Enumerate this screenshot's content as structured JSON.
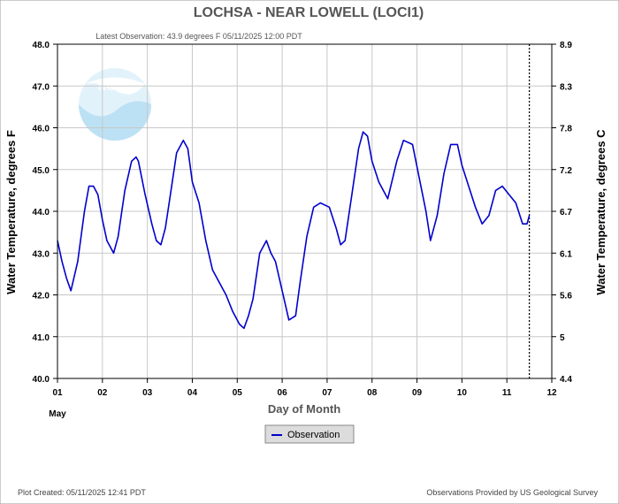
{
  "header": {
    "title": "LOCHSA - NEAR LOWELL  (LOCI1)",
    "latest_observation": "Latest Observation: 43.9 degrees F  05/11/2025 12:00 PDT"
  },
  "footer": {
    "plot_created": "Plot Created: 05/11/2025 12:41 PDT",
    "provided_by": "Observations Provided by US Geological Survey"
  },
  "logo": {
    "text": "NOAA",
    "icon": "noaa-logo-icon"
  },
  "colors": {
    "series": "#0000cc",
    "grid": "#c8c8c8",
    "border": "#000000",
    "logo": "#9fd0ee"
  },
  "chart_data": {
    "type": "line",
    "title": "LOCHSA - NEAR LOWELL  (LOCI1)",
    "xlabel": "Day of Month",
    "x_month_label": "May",
    "ylabel": "Water Temperature, degrees F",
    "y2label": "Water Temperature, degrees C",
    "xlim": [
      1,
      12
    ],
    "ylim": [
      40.0,
      48.0
    ],
    "x_ticks": [
      "01",
      "02",
      "03",
      "04",
      "05",
      "06",
      "07",
      "08",
      "09",
      "10",
      "11",
      "12"
    ],
    "y_ticks": [
      "40.0",
      "41.0",
      "42.0",
      "43.0",
      "44.0",
      "45.0",
      "46.0",
      "47.0",
      "48.0"
    ],
    "y2_ticks": [
      {
        "label": "4.4",
        "f": 40.0
      },
      {
        "label": "5",
        "f": 41.0
      },
      {
        "label": "5.6",
        "f": 42.0
      },
      {
        "label": "6.1",
        "f": 43.0
      },
      {
        "label": "6.7",
        "f": 44.0
      },
      {
        "label": "7.2",
        "f": 45.0
      },
      {
        "label": "7.8",
        "f": 46.0
      },
      {
        "label": "8.3",
        "f": 47.0
      },
      {
        "label": "8.9",
        "f": 48.0
      }
    ],
    "grid": true,
    "legend_position": "bottom-center",
    "latest_obs_x": 11.5,
    "series": [
      {
        "name": "Observation",
        "x": [
          1.0,
          1.1,
          1.2,
          1.3,
          1.45,
          1.6,
          1.7,
          1.8,
          1.9,
          2.0,
          2.1,
          2.25,
          2.35,
          2.5,
          2.65,
          2.75,
          2.8,
          2.95,
          3.1,
          3.2,
          3.3,
          3.4,
          3.5,
          3.65,
          3.8,
          3.9,
          4.0,
          4.15,
          4.3,
          4.45,
          4.6,
          4.75,
          4.9,
          5.05,
          5.15,
          5.25,
          5.35,
          5.5,
          5.65,
          5.75,
          5.85,
          6.0,
          6.15,
          6.3,
          6.4,
          6.55,
          6.7,
          6.85,
          7.05,
          7.2,
          7.3,
          7.4,
          7.55,
          7.7,
          7.8,
          7.9,
          8.0,
          8.15,
          8.35,
          8.55,
          8.7,
          8.9,
          9.05,
          9.2,
          9.3,
          9.45,
          9.6,
          9.75,
          9.9,
          10.0,
          10.15,
          10.3,
          10.45,
          10.6,
          10.75,
          10.9,
          11.05,
          11.2,
          11.35,
          11.45,
          11.5
        ],
        "y": [
          43.3,
          42.8,
          42.4,
          42.1,
          42.8,
          44.0,
          44.6,
          44.6,
          44.4,
          43.8,
          43.3,
          43.0,
          43.4,
          44.5,
          45.2,
          45.3,
          45.2,
          44.4,
          43.7,
          43.3,
          43.2,
          43.6,
          44.3,
          45.4,
          45.7,
          45.5,
          44.7,
          44.2,
          43.3,
          42.6,
          42.3,
          42.0,
          41.6,
          41.3,
          41.2,
          41.5,
          41.9,
          43.0,
          43.3,
          43.0,
          42.8,
          42.1,
          41.4,
          41.5,
          42.3,
          43.4,
          44.1,
          44.2,
          44.1,
          43.6,
          43.2,
          43.3,
          44.4,
          45.5,
          45.9,
          45.8,
          45.2,
          44.7,
          44.3,
          45.2,
          45.7,
          45.6,
          44.8,
          44.0,
          43.3,
          43.9,
          44.9,
          45.6,
          45.6,
          45.1,
          44.6,
          44.1,
          43.7,
          43.9,
          44.5,
          44.6,
          44.4,
          44.2,
          43.7,
          43.7,
          43.9
        ]
      }
    ]
  }
}
